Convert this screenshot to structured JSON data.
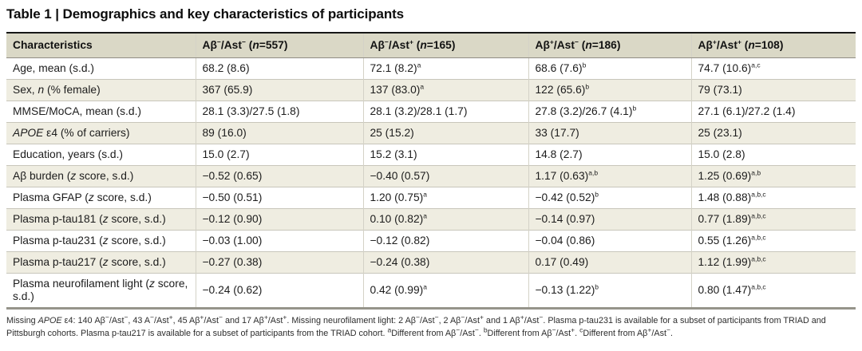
{
  "colors": {
    "header-bg": "#dad8c6",
    "stripe-bg": "#efede1",
    "top-rule": "#161616",
    "bottom-rule": "#96948a"
  },
  "title": "Table 1 | Demographics and key characteristics of participants",
  "table": {
    "columns": [
      "Characteristics",
      "Aβ{s}−{/s}/Ast{s}−{/s} ({i}n{/i}=557)",
      "Aβ{s}−{/s}/Ast{s}+{/s} ({i}n{/i}=165)",
      "Aβ{s}+{/s}/Ast{s}−{/s} ({i}n{/i}=186)",
      "Aβ{s}+{/s}/Ast{s}+{/s} ({i}n{/i}=108)"
    ],
    "rows": [
      {
        "cells": [
          "Age, mean (s.d.)",
          "68.2 (8.6)",
          "72.1 (8.2){s}a{/s}",
          "68.6 (7.6){s}b{/s}",
          "74.7 (10.6){s}a,c{/s}"
        ]
      },
      {
        "cells": [
          "Sex, {i}n{/i} (% female)",
          "367 (65.9)",
          "137 (83.0){s}a{/s}",
          "122 (65.6){s}b{/s}",
          "79 (73.1)"
        ]
      },
      {
        "cells": [
          "MMSE/MoCA, mean (s.d.)",
          "28.1 (3.3)/27.5 (1.8)",
          "28.1 (3.2)/28.1 (1.7)",
          "27.8 (3.2)/26.7 (4.1){s}b{/s}",
          "27.1 (6.1)/27.2 (1.4)"
        ]
      },
      {
        "cells": [
          "{i}APOE{/i} ε4 (% of carriers)",
          "89 (16.0)",
          "25 (15.2)",
          "33 (17.7)",
          "25 (23.1)"
        ]
      },
      {
        "cells": [
          "Education, years (s.d.)",
          "15.0 (2.7)",
          "15.2 (3.1)",
          "14.8 (2.7)",
          "15.0 (2.8)"
        ]
      },
      {
        "cells": [
          "Aβ burden ({i}z{/i} score, s.d.)",
          "−0.52 (0.65)",
          "−0.40 (0.57)",
          "1.17 (0.63){s}a,b{/s}",
          "1.25 (0.69){s}a,b{/s}"
        ]
      },
      {
        "cells": [
          "Plasma GFAP ({i}z{/i} score, s.d.)",
          "−0.50 (0.51)",
          "1.20 (0.75){s}a{/s}",
          "−0.42 (0.52){s}b{/s}",
          "1.48 (0.88){s}a,b,c{/s}"
        ]
      },
      {
        "cells": [
          "Plasma p-tau181 ({i}z{/i} score, s.d.)",
          "−0.12 (0.90)",
          "0.10 (0.82){s}a{/s}",
          "−0.14 (0.97)",
          "0.77 (1.89){s}a,b,c{/s}"
        ]
      },
      {
        "cells": [
          "Plasma p-tau231 ({i}z{/i} score, s.d.)",
          "−0.03 (1.00)",
          "−0.12 (0.82)",
          "−0.04 (0.86)",
          "0.55 (1.26){s}a,b,c{/s}"
        ]
      },
      {
        "cells": [
          "Plasma p-tau217 ({i}z{/i} score, s.d.)",
          "−0.27 (0.38)",
          "−0.24 (0.38)",
          "0.17 (0.49)",
          "1.12 (1.99){s}a,b,c{/s}"
        ]
      },
      {
        "cells": [
          "Plasma neurofilament light ({i}z{/i} score, s.d.)",
          "−0.24 (0.62)",
          "0.42 (0.99){s}a{/s}",
          "−0.13 (1.22){s}b{/s}",
          "0.80 (1.47){s}a,b,c{/s}"
        ]
      }
    ]
  },
  "footnote": "Missing {i}APOE{/i} ε4: 140 Aβ{s}−{/s}/Ast{s}−{/s}, 43 A{s}−{/s}/Ast{s}+{/s}, 45 Aβ{s}+{/s}/Ast{s}−{/s} and 17 Aβ{s}+{/s}/Ast{s}+{/s}. Missing neurofilament light: 2 Aβ{s}−{/s}/Ast{s}−{/s}, 2 Aβ{s}−{/s}/Ast{s}+{/s} and 1 Aβ{s}+{/s}/Ast{s}−{/s}. Plasma p-tau231 is available for a subset of participants from TRIAD and Pittsburgh cohorts. Plasma p-tau217 is available for a subset of participants from the TRIAD cohort. {s}a{/s}Different from Aβ{s}−{/s}/Ast{s}−{/s}. {s}b{/s}Different from Aβ{s}−{/s}/Ast{s}+{/s}. {s}c{/s}Different from Aβ{s}+{/s}/Ast{s}−{/s}."
}
